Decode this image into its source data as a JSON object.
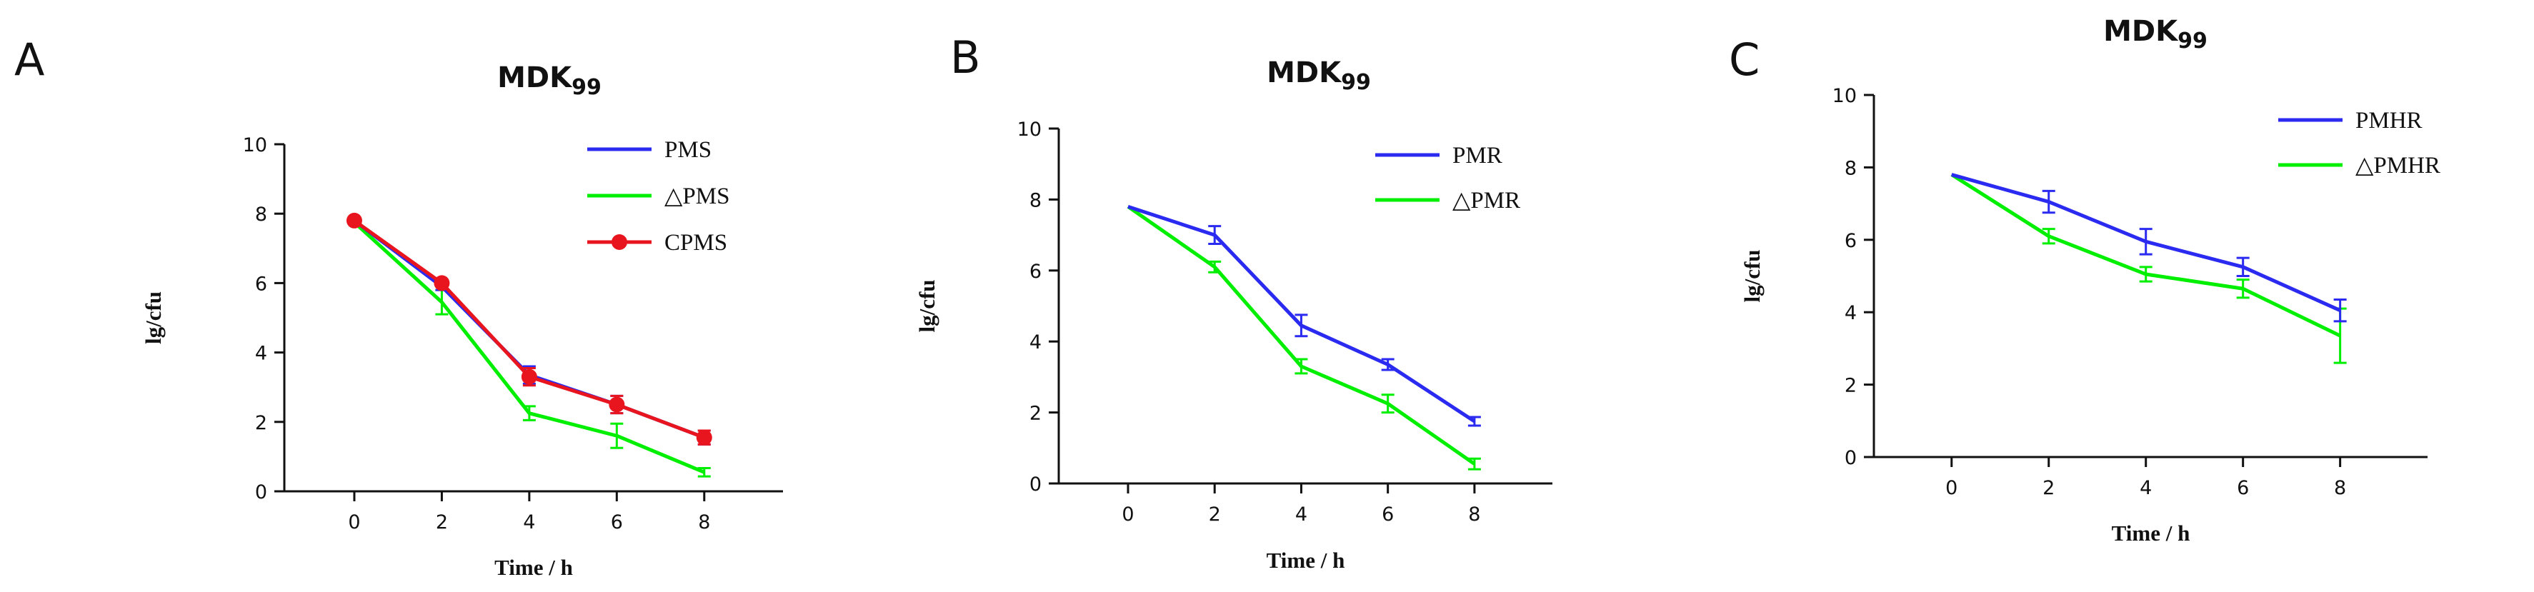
{
  "figure": {
    "panels": [
      "A",
      "B",
      "C"
    ]
  },
  "chart_data": [
    {
      "panel": "A",
      "type": "line",
      "title": "MDK",
      "title_subscript": "99",
      "xlabel": "Time / h",
      "ylabel": "lg/cfu",
      "x": [
        0,
        2,
        4,
        6,
        8
      ],
      "xlim": [
        -1.6,
        9.8
      ],
      "ylim": [
        0,
        10
      ],
      "xticks": [
        0,
        2,
        4,
        6,
        8
      ],
      "yticks": [
        0,
        2,
        4,
        6,
        8,
        10
      ],
      "legend_position": "top-right",
      "series": [
        {
          "name": "PMS",
          "color": "#2a2af0",
          "marker": "none",
          "values": [
            7.8,
            5.9,
            3.35,
            2.5,
            1.55
          ],
          "errors": [
            0,
            0.1,
            0.25,
            0.25,
            0.2
          ]
        },
        {
          "name": "△PMS",
          "color": "#00ee00",
          "marker": "none",
          "values": [
            7.75,
            5.45,
            2.25,
            1.6,
            0.55
          ],
          "errors": [
            0,
            0.35,
            0.2,
            0.35,
            0.12
          ]
        },
        {
          "name": "CPMS",
          "color": "#e8141e",
          "marker": "circle",
          "values": [
            7.8,
            6.0,
            3.3,
            2.5,
            1.55
          ],
          "errors": [
            0,
            0.1,
            0.25,
            0.25,
            0.2
          ]
        }
      ]
    },
    {
      "panel": "B",
      "type": "line",
      "title": "MDK",
      "title_subscript": "99",
      "xlabel": "Time / h",
      "ylabel": "lg/cfu",
      "x": [
        0,
        2,
        4,
        6,
        8
      ],
      "xlim": [
        -1.6,
        9.8
      ],
      "ylim": [
        0,
        10
      ],
      "xticks": [
        0,
        2,
        4,
        6,
        8
      ],
      "yticks": [
        0,
        2,
        4,
        6,
        8,
        10
      ],
      "legend_position": "top-right",
      "series": [
        {
          "name": "PMR",
          "color": "#2a2af0",
          "marker": "none",
          "values": [
            7.8,
            7.0,
            4.45,
            3.35,
            1.75
          ],
          "errors": [
            0,
            0.25,
            0.3,
            0.15,
            0.12
          ]
        },
        {
          "name": "△PMR",
          "color": "#00ee00",
          "marker": "none",
          "values": [
            7.8,
            6.1,
            3.3,
            2.25,
            0.55
          ],
          "errors": [
            0,
            0.15,
            0.2,
            0.25,
            0.15
          ]
        }
      ]
    },
    {
      "panel": "C",
      "type": "line",
      "title": "MDK",
      "title_subscript": "99",
      "xlabel": "Time / h",
      "ylabel": "lg/cfu",
      "x": [
        0,
        2,
        4,
        6,
        8
      ],
      "xlim": [
        -1.6,
        9.8
      ],
      "ylim": [
        0,
        10
      ],
      "xticks": [
        0,
        2,
        4,
        6,
        8
      ],
      "yticks": [
        0,
        2,
        4,
        6,
        8,
        10
      ],
      "legend_position": "top-right",
      "series": [
        {
          "name": "PMHR",
          "color": "#2a2af0",
          "marker": "none",
          "values": [
            7.8,
            7.05,
            5.95,
            5.25,
            4.05
          ],
          "errors": [
            0,
            0.3,
            0.35,
            0.25,
            0.3
          ]
        },
        {
          "name": "△PMHR",
          "color": "#00ee00",
          "marker": "none",
          "values": [
            7.8,
            6.1,
            5.05,
            4.65,
            3.35
          ],
          "errors": [
            0,
            0.2,
            0.2,
            0.25,
            0.75
          ]
        }
      ]
    }
  ]
}
